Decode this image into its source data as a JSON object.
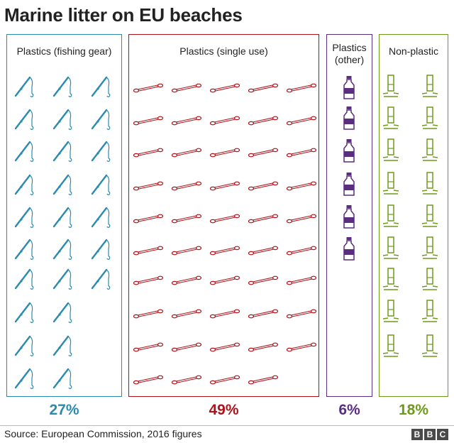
{
  "title": "Marine litter on EU beaches",
  "source": "Source: European Commission, 2016 figures",
  "logo": [
    "B",
    "B",
    "C"
  ],
  "colors": {
    "fishing": "#2a8bb0",
    "single_use": "#b0121a",
    "other": "#5a2d7e",
    "non_plastic": "#6e9a1a"
  },
  "panels": {
    "fishing": {
      "label": "Plastics (fishing gear)",
      "percent": "27%",
      "icon": "fishing-rod-icon"
    },
    "single_use": {
      "label": "Plastics (single use)",
      "percent": "49%",
      "icon": "cotton-bud-icon"
    },
    "other": {
      "label_line1": "Plastics",
      "label_line2": "(other)",
      "percent": "6%",
      "icon": "plastic-bottle-icon"
    },
    "non_plastic": {
      "label": "Non-plastic",
      "percent": "18%",
      "icon": "cigarette-butt-icon"
    }
  },
  "chart_data": {
    "type": "bar",
    "title": "Marine litter on EU beaches",
    "categories": [
      "Plastics (fishing gear)",
      "Plastics (single use)",
      "Plastics (other)",
      "Non-plastic"
    ],
    "values": [
      27,
      49,
      6,
      18
    ],
    "unit": "%"
  }
}
